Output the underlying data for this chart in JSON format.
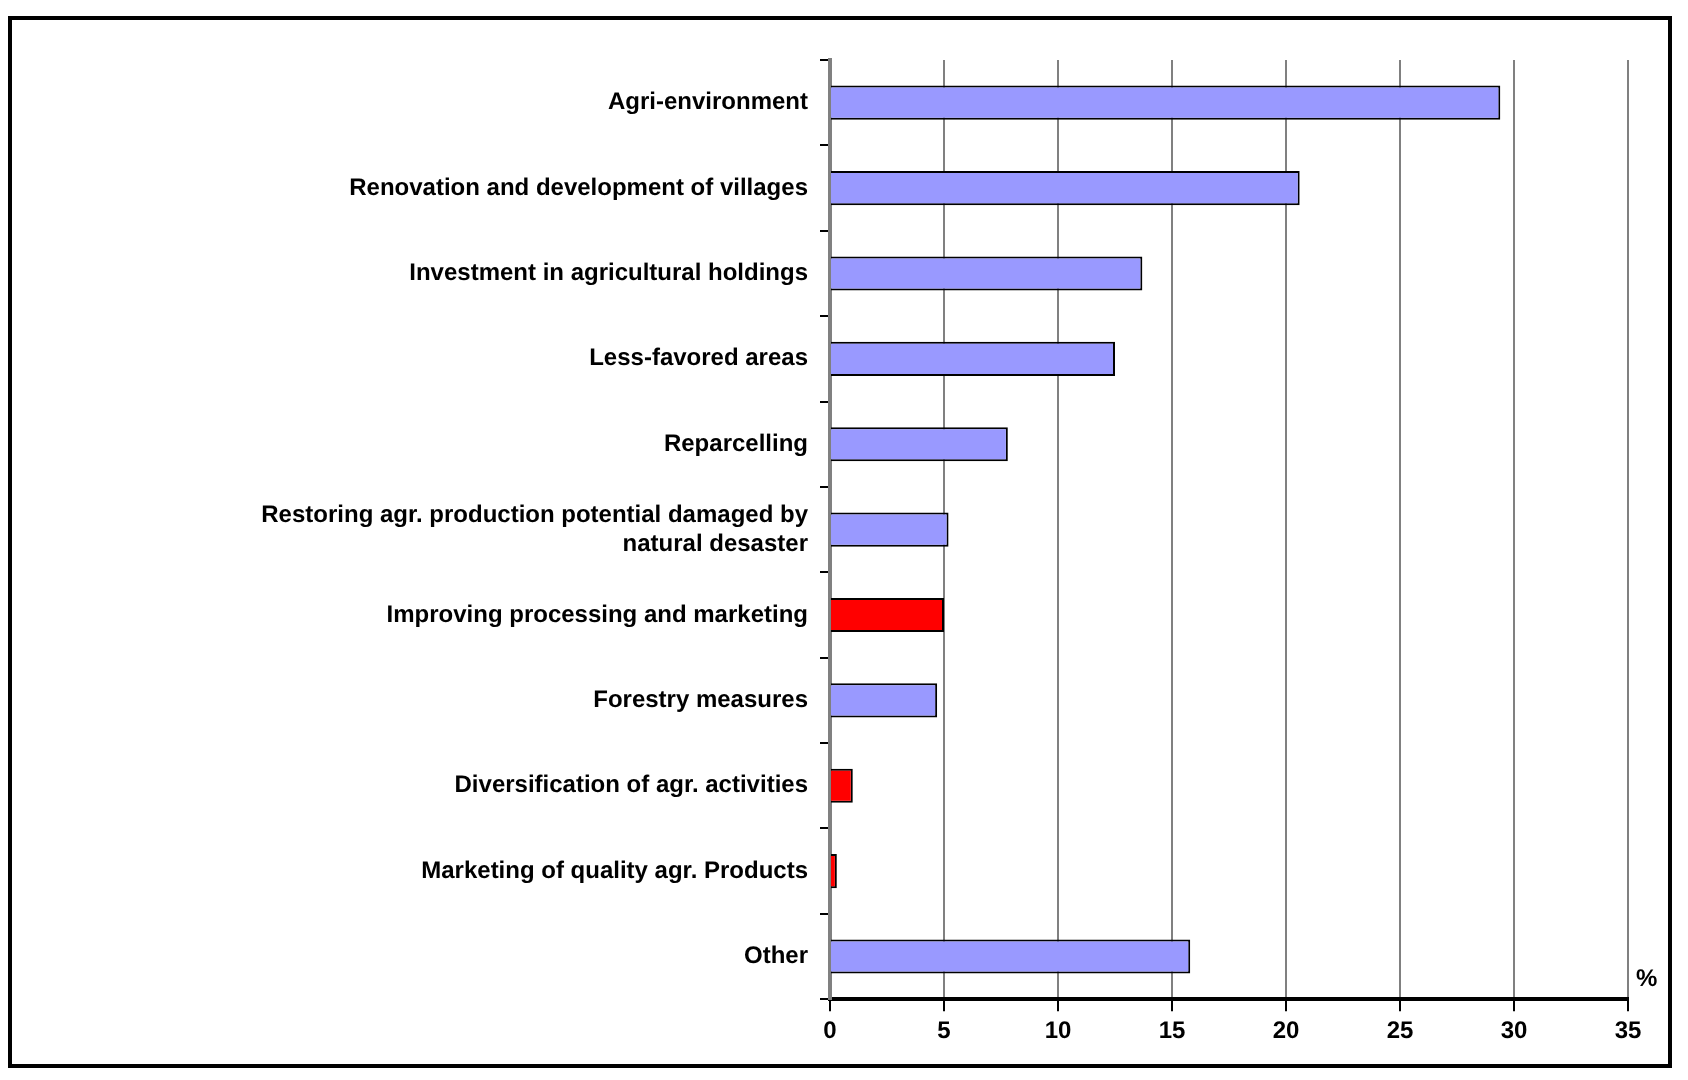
{
  "chart_data": {
    "type": "bar",
    "orientation": "horizontal",
    "xlabel": "%",
    "categories": [
      "Agri-environment",
      "Renovation and development of villages",
      "Investment in agricultural holdings",
      "Less-favored areas",
      "Reparcelling",
      "Restoring agr. production potential damaged by natural desaster",
      "Improving processing and marketing",
      "Forestry measures",
      "Diversification of agr. activities",
      "Marketing of quality agr. Products",
      "Other"
    ],
    "values": [
      29.4,
      20.6,
      13.7,
      12.5,
      7.8,
      5.2,
      5.0,
      4.7,
      1.0,
      0.3,
      15.8
    ],
    "colors": [
      "#9999ff",
      "#9999ff",
      "#9999ff",
      "#9999ff",
      "#9999ff",
      "#9999ff",
      "#ff0000",
      "#9999ff",
      "#ff0000",
      "#ff0000",
      "#9999ff"
    ],
    "xlim": [
      0,
      35
    ],
    "xticks": [
      0,
      5,
      10,
      15,
      20,
      25,
      30,
      35
    ],
    "grid": "x",
    "legend": false
  }
}
